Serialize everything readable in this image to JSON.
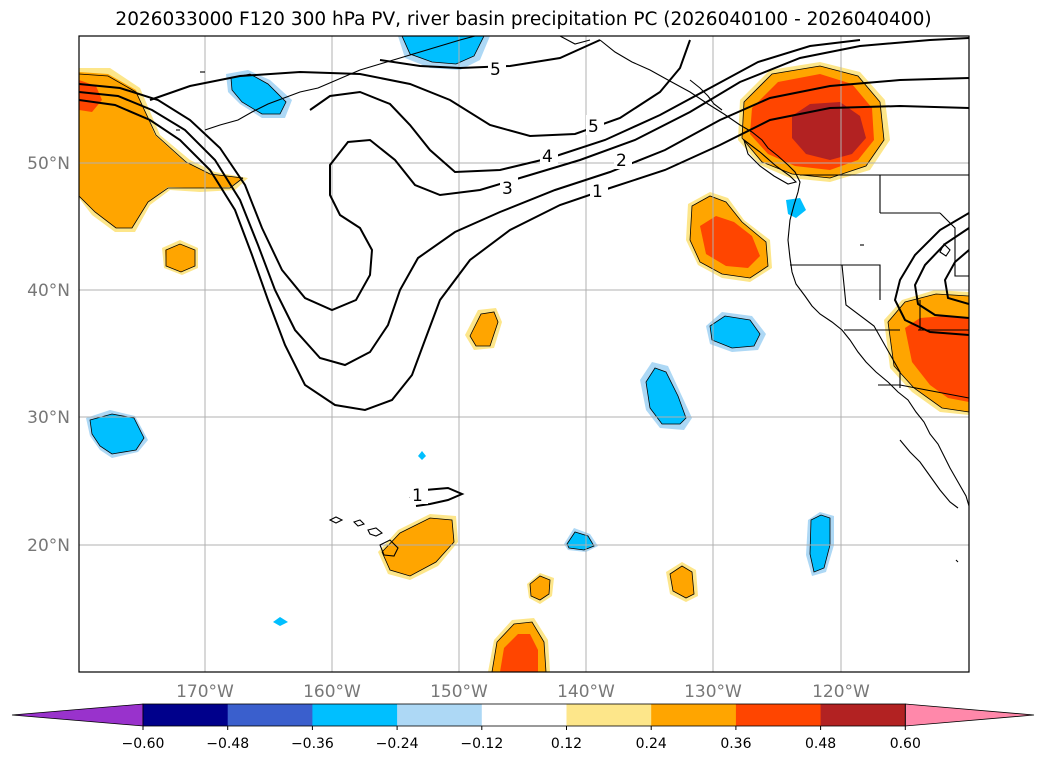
{
  "title": "2026033000 F120 300 hPa PV, river basin precipitation PC (2026040100 - 2026040400)",
  "latitude_labels": [
    "50°N",
    "40°N",
    "30°N",
    "20°N"
  ],
  "longitude_labels": [
    "170°W",
    "160°W",
    "150°W",
    "140°W",
    "130°W",
    "120°W"
  ],
  "contour_labels": [
    "5",
    "5",
    "4",
    "3",
    "2",
    "1",
    "1"
  ],
  "colorbar": {
    "labels": [
      "−0.60",
      "−0.48",
      "−0.36",
      "−0.24",
      "−0.12",
      "0.12",
      "0.24",
      "0.36",
      "0.48",
      "0.60"
    ],
    "colors": [
      "#9932cc",
      "#00008b",
      "#3a5fcd",
      "#00bfff",
      "#add8f5",
      "#ffffff",
      "#fde68a",
      "#ffa500",
      "#ff4500",
      "#b22222",
      "#ff88aa"
    ]
  },
  "colors": {
    "gridline": "#b0b0b0",
    "coastline": "#000000",
    "pv_contour": "#000000"
  }
}
